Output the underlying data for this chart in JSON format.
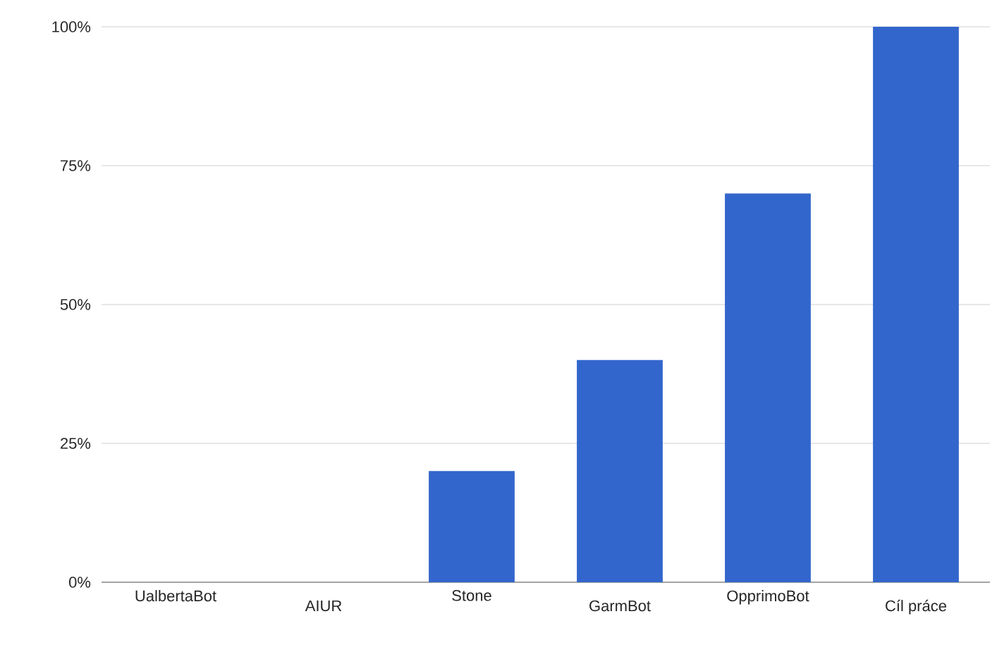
{
  "chart_data": {
    "type": "bar",
    "categories": [
      "UalbertaBot",
      "AIUR",
      "Stone",
      "GarmBot",
      "OpprimoBot",
      "Cíl práce"
    ],
    "values": [
      0,
      0,
      20,
      40,
      70,
      100
    ],
    "color": "#3366cc",
    "ylim": [
      0,
      100
    ],
    "yticks": [
      {
        "value": 0,
        "label": "0%"
      },
      {
        "value": 25,
        "label": "25%"
      },
      {
        "value": 50,
        "label": "50%"
      },
      {
        "value": 75,
        "label": "75%"
      },
      {
        "value": 100,
        "label": "100%"
      }
    ],
    "grid": "y"
  }
}
